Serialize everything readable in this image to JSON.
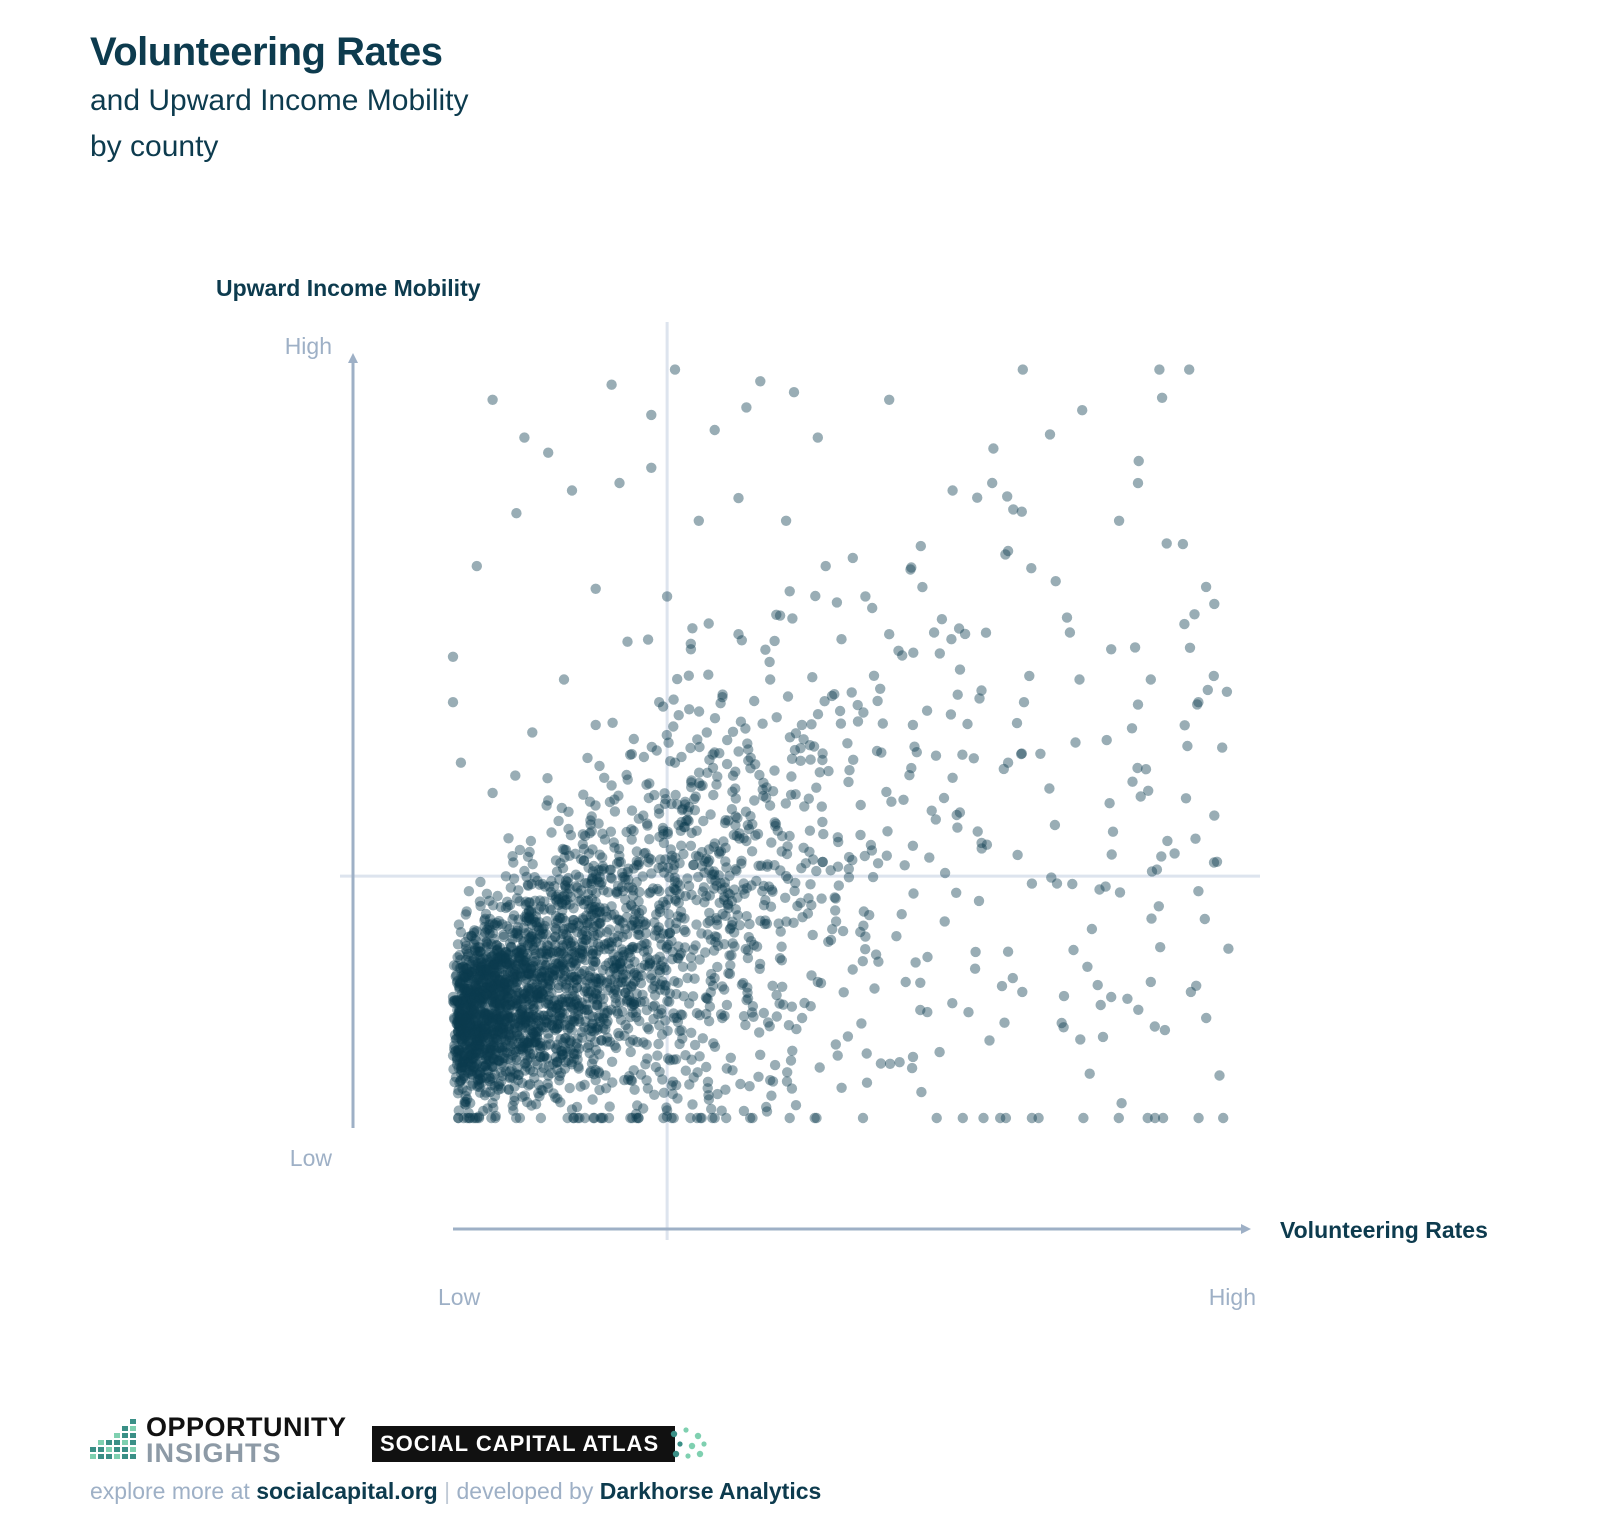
{
  "header": {
    "title": "Volunteering Rates",
    "subtitle_line1": "and Upward Income Mobility",
    "subtitle_line2": "by county"
  },
  "chart_data": {
    "type": "scatter",
    "title": "Volunteering Rates",
    "subtitle": "and Upward Income Mobility by county",
    "xlabel": "Volunteering Rates",
    "ylabel": "Upward Income Mobility",
    "x_tick_labels": [
      "Low",
      "High"
    ],
    "y_tick_labels": [
      "Low",
      "High"
    ],
    "xlim": [
      0,
      1
    ],
    "ylim": [
      0,
      1
    ],
    "reference_lines": {
      "x": 0.27,
      "y": 0.32
    },
    "grid": false,
    "legend": "none",
    "point_color": "#0d3b4e",
    "approx_point_count": 3000,
    "points": [
      [
        0.05,
        0.95
      ],
      [
        0.09,
        0.9
      ],
      [
        0.12,
        0.88
      ],
      [
        0.2,
        0.97
      ],
      [
        0.25,
        0.93
      ],
      [
        0.28,
        0.99
      ],
      [
        0.33,
        0.91
      ],
      [
        0.37,
        0.94
      ],
      [
        0.43,
        0.96
      ],
      [
        0.46,
        0.9
      ],
      [
        0.55,
        0.95
      ],
      [
        0.63,
        0.83
      ],
      [
        0.68,
        0.84
      ],
      [
        0.7,
        0.75
      ],
      [
        0.76,
        0.71
      ],
      [
        0.84,
        0.79
      ],
      [
        0.9,
        0.76
      ],
      [
        0.96,
        0.68
      ],
      [
        0.94,
        0.55
      ],
      [
        0.97,
        0.49
      ],
      [
        0.88,
        0.58
      ],
      [
        0.83,
        0.62
      ],
      [
        0.79,
        0.58
      ],
      [
        0.72,
        0.55
      ],
      [
        0.7,
        0.47
      ],
      [
        0.63,
        0.45
      ],
      [
        0.58,
        0.52
      ],
      [
        0.55,
        0.64
      ],
      [
        0.52,
        0.69
      ],
      [
        0.47,
        0.73
      ],
      [
        0.42,
        0.79
      ],
      [
        0.36,
        0.82
      ],
      [
        0.31,
        0.79
      ],
      [
        0.25,
        0.86
      ],
      [
        0.21,
        0.84
      ],
      [
        0.15,
        0.83
      ],
      [
        0.08,
        0.8
      ],
      [
        0.03,
        0.73
      ],
      [
        0.0,
        0.61
      ],
      [
        0.0,
        0.55
      ],
      [
        0.01,
        0.47
      ],
      [
        0.05,
        0.43
      ],
      [
        0.07,
        0.37
      ],
      [
        0.02,
        0.3
      ],
      [
        0.0,
        0.16
      ],
      [
        0.01,
        0.05
      ],
      [
        0.05,
        0.02
      ],
      [
        0.12,
        0.04
      ],
      [
        0.18,
        0.05
      ],
      [
        0.24,
        0.1
      ],
      [
        0.27,
        0.01
      ],
      [
        0.33,
        0.0
      ],
      [
        0.4,
        0.05
      ],
      [
        0.49,
        0.04
      ],
      [
        0.61,
        0.0
      ],
      [
        0.65,
        0.14
      ],
      [
        0.77,
        0.12
      ],
      [
        0.83,
        0.16
      ],
      [
        0.89,
        0.28
      ],
      [
        0.94,
        0.3
      ],
      [
        0.96,
        0.4
      ],
      [
        0.91,
        0.35
      ],
      [
        0.88,
        0.18
      ],
      [
        0.8,
        0.2
      ],
      [
        0.73,
        0.31
      ],
      [
        0.7,
        0.22
      ],
      [
        0.62,
        0.26
      ],
      [
        0.58,
        0.36
      ],
      [
        0.52,
        0.24
      ],
      [
        0.46,
        0.18
      ],
      [
        0.42,
        0.32
      ],
      [
        0.38,
        0.42
      ],
      [
        0.34,
        0.56
      ],
      [
        0.3,
        0.62
      ],
      [
        0.27,
        0.69
      ],
      [
        0.22,
        0.63
      ],
      [
        0.18,
        0.7
      ],
      [
        0.14,
        0.58
      ],
      [
        0.1,
        0.51
      ],
      [
        0.2,
        0.44
      ],
      [
        0.24,
        0.4
      ],
      [
        0.28,
        0.47
      ],
      [
        0.3,
        0.36
      ],
      [
        0.26,
        0.3
      ],
      [
        0.2,
        0.28
      ],
      [
        0.14,
        0.25
      ],
      [
        0.1,
        0.2
      ],
      [
        0.06,
        0.15
      ],
      [
        0.03,
        0.1
      ],
      [
        0.08,
        0.08
      ],
      [
        0.15,
        0.13
      ],
      [
        0.22,
        0.17
      ],
      [
        0.29,
        0.2
      ],
      [
        0.34,
        0.27
      ],
      [
        0.39,
        0.3
      ],
      [
        0.45,
        0.38
      ],
      [
        0.5,
        0.46
      ],
      [
        0.44,
        0.52
      ],
      [
        0.4,
        0.58
      ],
      [
        0.36,
        0.64
      ],
      [
        0.32,
        0.51
      ],
      [
        0.26,
        0.55
      ],
      [
        0.18,
        0.52
      ],
      [
        0.12,
        0.42
      ]
    ]
  },
  "footer": {
    "logo_opportunity": "OPPORTUNITY",
    "logo_insights": "INSIGHTS",
    "badge_text": "SOCIAL CAPITAL ATLAS",
    "explore_prefix": "explore more at",
    "explore_link": "socialcapital.org",
    "separator": "|",
    "developed_prefix": "developed by",
    "developer": "Darkhorse Analytics"
  },
  "colors": {
    "navy": "#0d3b4e",
    "axis": "#9eb0c6",
    "reference_line": "#dde4ee",
    "logo_teal": "#3a8f86",
    "logo_green": "#7fd0b0"
  }
}
